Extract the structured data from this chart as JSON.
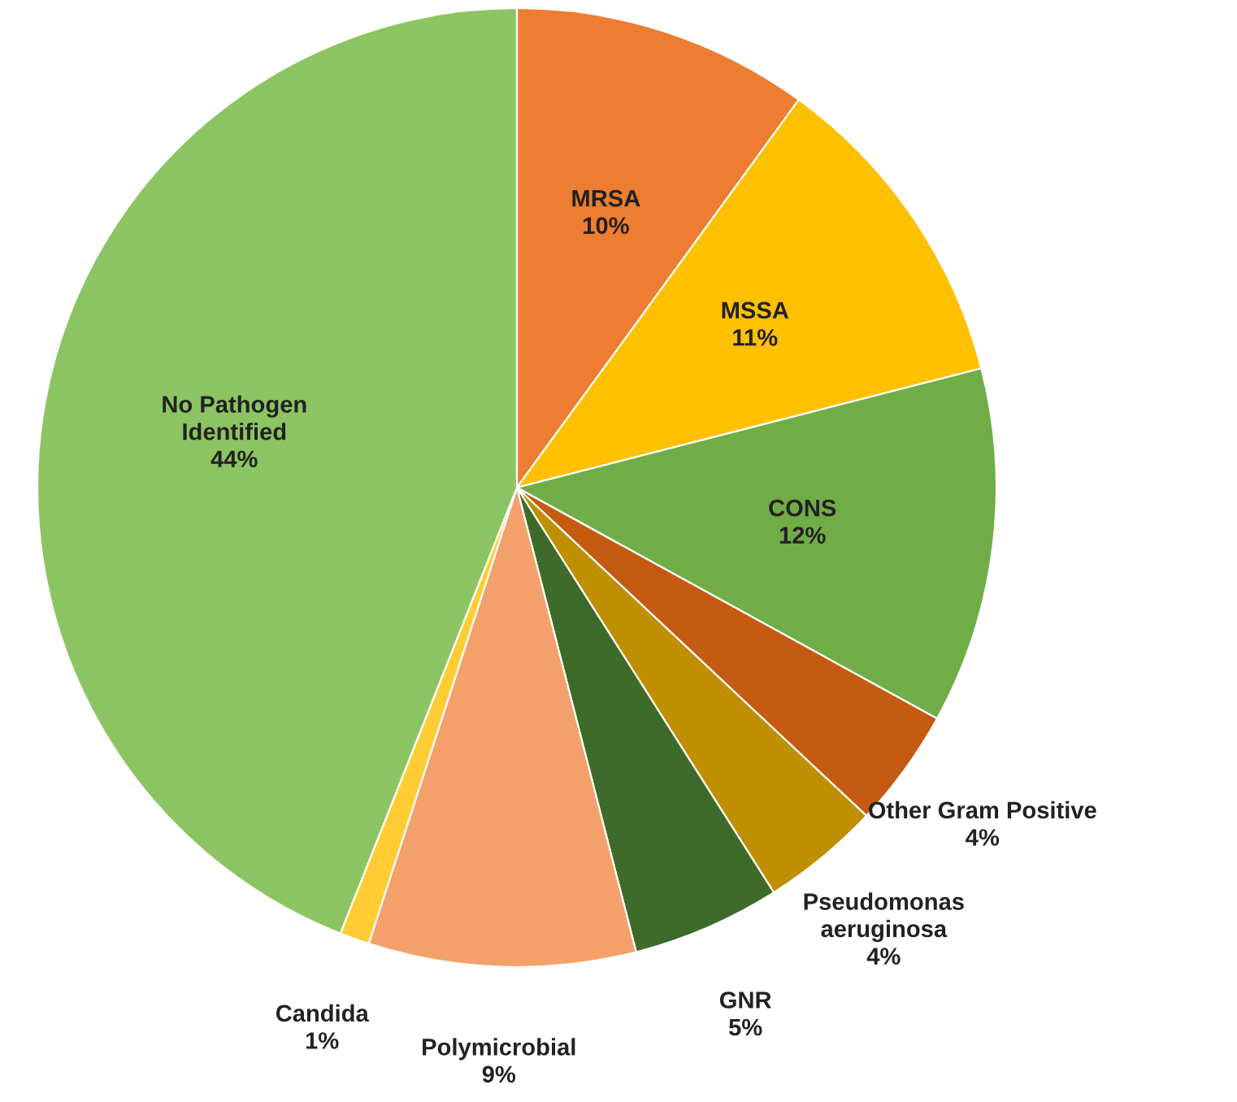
{
  "chart_data": {
    "type": "pie",
    "categories": [
      "MRSA",
      "MSSA",
      "CONS",
      "Other Gram Positive",
      "Pseudomonas aeruginosa",
      "GNR",
      "Polymicrobial",
      "Candida",
      "No Pathogen Identified"
    ],
    "values": [
      10,
      11,
      12,
      4,
      4,
      5,
      9,
      1,
      44
    ],
    "value_labels": [
      "10%",
      "11%",
      "12%",
      "4%",
      "4%",
      "5%",
      "9%",
      "1%",
      "44%"
    ],
    "colors": [
      "#ed7d31",
      "#ffc000",
      "#70ad47",
      "#c55a11",
      "#bf8f00",
      "#3f6b2a",
      "#f4a06a",
      "#ffcc33",
      "#8dc463"
    ],
    "legend": false
  }
}
